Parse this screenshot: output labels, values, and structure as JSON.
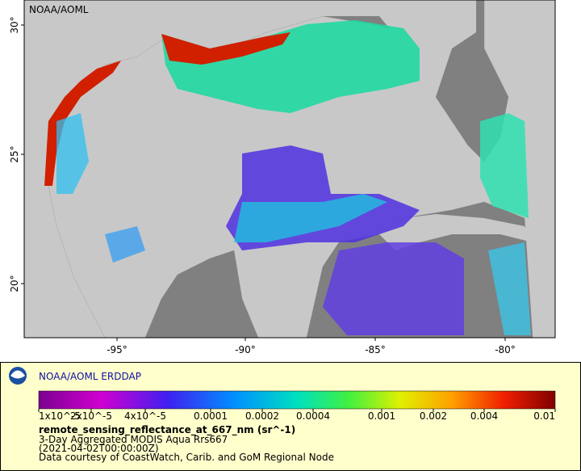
{
  "map": {
    "watermark": "NOAA/AOML",
    "lat_ticks": [
      "30°",
      "25°",
      "20°"
    ],
    "lon_ticks": [
      "-95°",
      "-90°",
      "-85°",
      "-80°"
    ]
  },
  "legend": {
    "title": "NOAA/AOML ERDDAP",
    "colorbar_labels": [
      "1x10^-5",
      "2x10^-5",
      "4x10^-5",
      "0.0001",
      "0.0002",
      "0.0004",
      "0.001",
      "0.002",
      "0.004",
      "0.01"
    ],
    "variable": "remote_sensing_reflectance_at_667_nm (sr^-1)",
    "dataset": "3-Day Aggregated MODIS Aqua Rrs667",
    "time": "(2021-04-02T00:00:00Z)",
    "credit": "Data courtesy of CoastWatch, Carib. and GoM Regional Node"
  }
}
